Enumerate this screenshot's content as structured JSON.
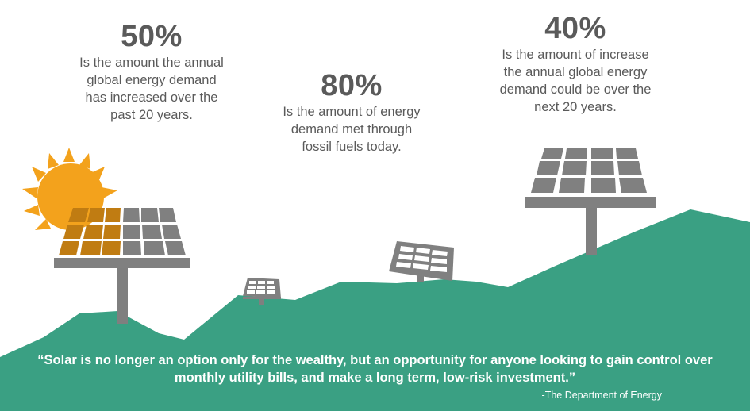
{
  "stats": [
    {
      "value": "50%",
      "text": "Is the amount the annual global energy demand has increased over the past 20 years."
    },
    {
      "value": "80%",
      "text": "Is the amount of energy demand met through fossil fuels today."
    },
    {
      "value": "40%",
      "text": "Is the amount of increase the annual global energy demand could be over the next 20 years."
    }
  ],
  "quote": "“Solar is no longer an option only for the wealthy, but an opportunity for anyone looking to gain control over monthly utility bills, and make a long term, low-risk investment.”",
  "attribution": "-The Department of Energy",
  "colors": {
    "hill": "#3aa083",
    "sun": "#f3a21c",
    "panel_gray": "#808080",
    "panel_lit": "#c07c12",
    "pole": "#7f7f7f",
    "text": "#5a5a5a"
  },
  "icons": [
    "sun-icon",
    "solar-panel-icon"
  ]
}
